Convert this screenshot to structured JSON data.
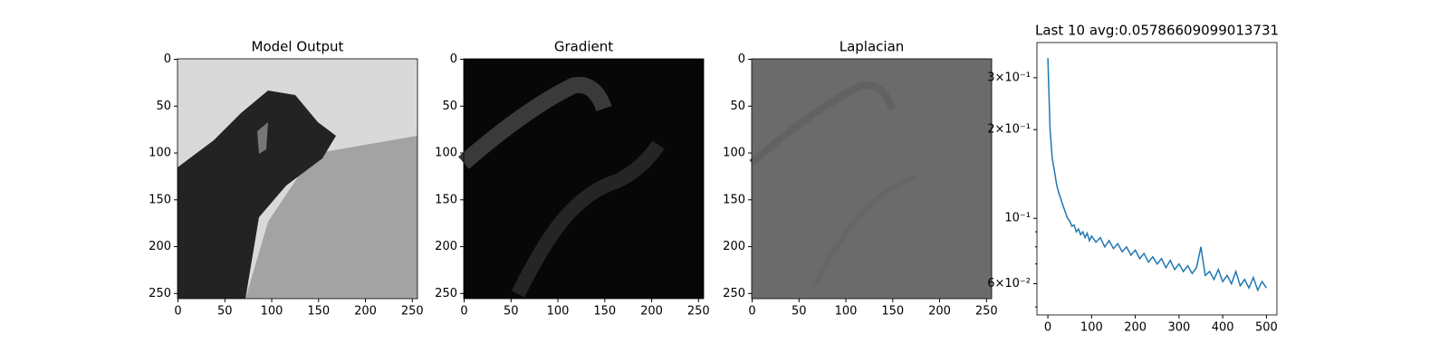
{
  "chart_data": [
    {
      "type": "image",
      "title": "Model Output",
      "xlim": [
        -0.5,
        255.5
      ],
      "ylim": [
        255.5,
        -0.5
      ],
      "xticks": [
        0,
        50,
        100,
        150,
        200,
        250
      ],
      "yticks": [
        0,
        50,
        100,
        150,
        200,
        250
      ]
    },
    {
      "type": "image",
      "title": "Gradient",
      "xlim": [
        -0.5,
        255.5
      ],
      "ylim": [
        255.5,
        -0.5
      ],
      "xticks": [
        0,
        50,
        100,
        150,
        200,
        250
      ],
      "yticks": [
        0,
        50,
        100,
        150,
        200,
        250
      ]
    },
    {
      "type": "image",
      "title": "Laplacian",
      "xlim": [
        -0.5,
        255.5
      ],
      "ylim": [
        255.5,
        -0.5
      ],
      "xticks": [
        0,
        50,
        100,
        150,
        200,
        250
      ],
      "yticks": [
        0,
        50,
        100,
        150,
        200,
        250
      ]
    },
    {
      "type": "line",
      "title": "Last 10 avg:0.05786609099013731",
      "log_y": true,
      "color": "#1f77b4",
      "x": [
        0,
        5,
        10,
        15,
        20,
        25,
        30,
        35,
        40,
        45,
        50,
        55,
        60,
        65,
        70,
        75,
        80,
        85,
        90,
        95,
        100,
        110,
        120,
        130,
        140,
        150,
        160,
        170,
        180,
        190,
        200,
        210,
        220,
        230,
        240,
        250,
        260,
        270,
        280,
        290,
        300,
        310,
        320,
        330,
        340,
        350,
        360,
        370,
        380,
        390,
        400,
        410,
        420,
        430,
        440,
        450,
        460,
        470,
        480,
        490,
        500
      ],
      "values": [
        0.35,
        0.2,
        0.16,
        0.145,
        0.13,
        0.122,
        0.116,
        0.11,
        0.105,
        0.1,
        0.098,
        0.094,
        0.095,
        0.09,
        0.092,
        0.088,
        0.09,
        0.086,
        0.089,
        0.084,
        0.087,
        0.083,
        0.086,
        0.08,
        0.084,
        0.079,
        0.082,
        0.077,
        0.08,
        0.075,
        0.078,
        0.073,
        0.076,
        0.071,
        0.074,
        0.07,
        0.073,
        0.068,
        0.072,
        0.067,
        0.07,
        0.066,
        0.069,
        0.065,
        0.068,
        0.08,
        0.064,
        0.066,
        0.062,
        0.067,
        0.061,
        0.064,
        0.06,
        0.066,
        0.059,
        0.062,
        0.058,
        0.063,
        0.057,
        0.061,
        0.058
      ],
      "xlim": [
        -25,
        524
      ],
      "ylim": [
        0.047,
        0.395
      ],
      "xticks": [
        0,
        100,
        200,
        300,
        400,
        500
      ],
      "yticks": [
        {
          "value": 0.3,
          "label": "3×10⁻¹"
        },
        {
          "value": 0.2,
          "label": "2×10⁻¹"
        },
        {
          "value": 0.1,
          "label": "10⁻¹"
        },
        {
          "value": 0.06,
          "label": "6×10⁻²"
        }
      ],
      "yminor": [
        0.05,
        0.07,
        0.08,
        0.09
      ]
    }
  ]
}
